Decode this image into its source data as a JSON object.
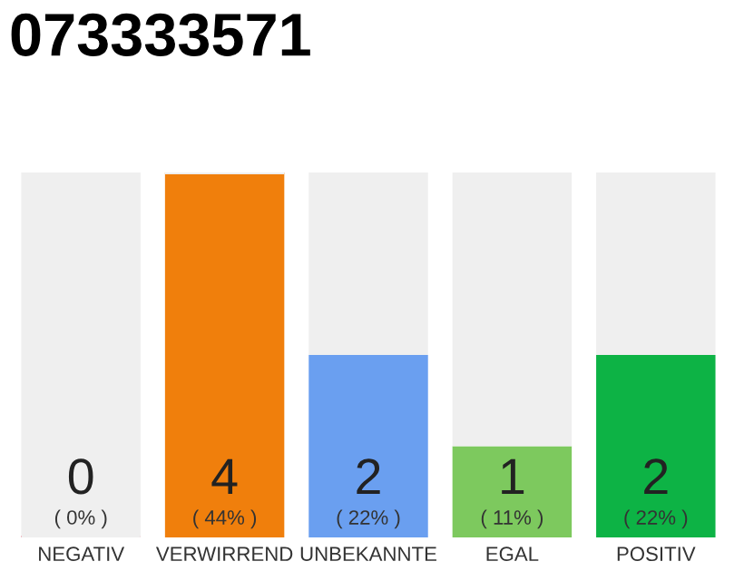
{
  "chart_data": {
    "type": "bar",
    "title": "073333571",
    "categories": [
      "NEGATIV",
      "VERWIRREND",
      "UNBEKANNTE",
      "EGAL",
      "POSITIV"
    ],
    "stacked": true,
    "series": [
      {
        "colors": [
          "#e8294a",
          "#f07f0c",
          "#6a9ff0",
          "#7dc95e",
          "#0db345"
        ],
        "values": [
          0,
          4,
          2,
          1,
          2
        ],
        "value_labels": [
          "0\n( 0% )",
          "4\n( 44% )",
          "2\n( 22% )",
          "1\n( 11% )",
          "2\n( 22% )"
        ]
      },
      {
        "color": "#efefef",
        "values": [
          4,
          0,
          2,
          3,
          2
        ]
      }
    ],
    "ylim": [
      0,
      4
    ],
    "tick_labels": "x",
    "grid": false,
    "legend": false
  }
}
